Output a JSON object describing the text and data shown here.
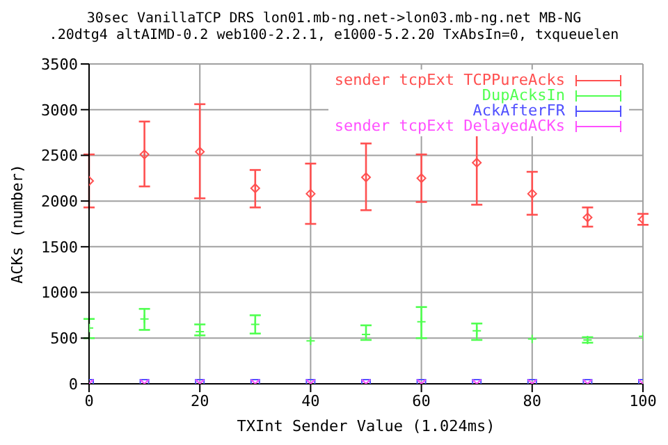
{
  "chart_data": {
    "type": "scatter",
    "title": "30sec VanillaTCP DRS lon01.mb-ng.net->lon03.mb-ng.net MB-NG",
    "subtitle": ".20dtg4 altAIMD-0.2 web100-2.2.1, e1000-5.2.20 TxAbsIn=0, txqueuelen",
    "xlabel": "TXInt Sender Value (1.024ms)",
    "ylabel": "ACKs (number)",
    "x": [
      0,
      10,
      20,
      30,
      40,
      50,
      60,
      70,
      80,
      90,
      100
    ],
    "series": [
      {
        "name": "sender tcpExt TCPPureAcks",
        "color": "#ff5050",
        "marker": "diamond",
        "values": [
          2220,
          2510,
          2540,
          2140,
          2080,
          2260,
          2250,
          2420,
          2080,
          1820,
          1800
        ],
        "errors": [
          [
            1930,
            2510
          ],
          [
            2160,
            2870
          ],
          [
            2030,
            3060
          ],
          [
            1930,
            2340
          ],
          [
            1750,
            2410
          ],
          [
            1900,
            2630
          ],
          [
            1990,
            2510
          ],
          [
            1960,
            2880
          ],
          [
            1850,
            2320
          ],
          [
            1720,
            1930
          ],
          [
            1740,
            1860
          ]
        ]
      },
      {
        "name": "DupAcksIn",
        "color": "#50ff50",
        "marker": "cross",
        "values": [
          610,
          710,
          570,
          650,
          470,
          540,
          680,
          580,
          490,
          480,
          520
        ],
        "errors": [
          [
            500,
            710
          ],
          [
            590,
            820
          ],
          [
            530,
            650
          ],
          [
            550,
            750
          ],
          null,
          [
            480,
            640
          ],
          [
            500,
            840
          ],
          [
            480,
            660
          ],
          null,
          [
            450,
            510
          ],
          null
        ]
      },
      {
        "name": "AckAfterFR",
        "color": "#5050ff",
        "marker": "square",
        "values": [
          0,
          0,
          0,
          0,
          0,
          0,
          0,
          0,
          0,
          0,
          0
        ]
      },
      {
        "name": "sender tcpExt DelayedACKs",
        "color": "#ff50ff",
        "marker": "x",
        "values": [
          0,
          0,
          0,
          0,
          0,
          0,
          0,
          0,
          0,
          0,
          0
        ]
      }
    ],
    "xlim": [
      0,
      100
    ],
    "xticks": [
      0,
      20,
      40,
      60,
      80,
      100
    ],
    "ylim": [
      0,
      3500
    ],
    "yticks": [
      0,
      500,
      1000,
      1500,
      2000,
      2500,
      3000,
      3500
    ],
    "grid": true,
    "legend": "top right"
  }
}
